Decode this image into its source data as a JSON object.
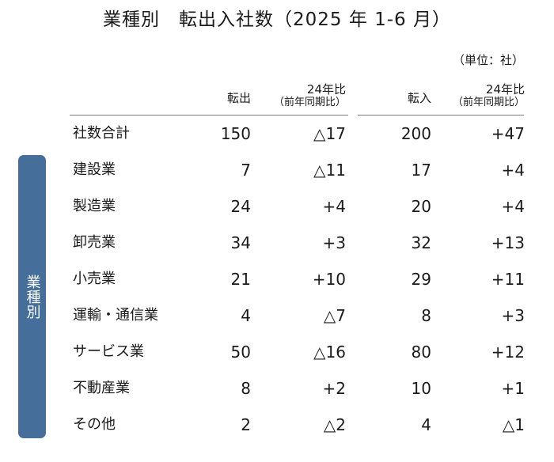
{
  "title": "業種別　転出入社数（2025 年 1-6 月）",
  "unit_note": "（単位：社）",
  "side_label": "業種別",
  "headers": {
    "out": "転出",
    "out_compare": "24年比",
    "out_compare_sub": "（前年同期比）",
    "in": "転入",
    "in_compare": "24年比",
    "in_compare_sub": "（前年同期比）"
  },
  "rows": [
    {
      "name": "社数合計",
      "out": "150",
      "out_diff": "△17",
      "in": "200",
      "in_diff": "+47"
    },
    {
      "name": "建設業",
      "out": "7",
      "out_diff": "△11",
      "in": "17",
      "in_diff": "+4"
    },
    {
      "name": "製造業",
      "out": "24",
      "out_diff": "+4",
      "in": "20",
      "in_diff": "+4"
    },
    {
      "name": "卸売業",
      "out": "34",
      "out_diff": "+3",
      "in": "32",
      "in_diff": "+13"
    },
    {
      "name": "小売業",
      "out": "21",
      "out_diff": "+10",
      "in": "29",
      "in_diff": "+11"
    },
    {
      "name": "運輸・通信業",
      "out": "4",
      "out_diff": "△7",
      "in": "8",
      "in_diff": "+3"
    },
    {
      "name": "サービス業",
      "out": "50",
      "out_diff": "△16",
      "in": "80",
      "in_diff": "+12"
    },
    {
      "name": "不動産業",
      "out": "8",
      "out_diff": "+2",
      "in": "10",
      "in_diff": "+1"
    },
    {
      "name": "その他",
      "out": "2",
      "out_diff": "△2",
      "in": "4",
      "in_diff": "△1"
    }
  ],
  "colors": {
    "side_label_bg": "#456f9a",
    "text": "#1a1a1a"
  }
}
